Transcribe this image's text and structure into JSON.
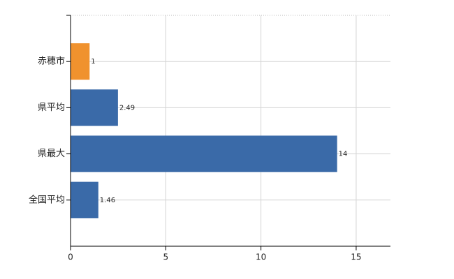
{
  "chart_data": {
    "type": "bar",
    "orientation": "horizontal",
    "categories": [
      "赤穂市",
      "県平均",
      "県最大",
      "全国平均"
    ],
    "values": [
      1,
      2.49,
      14,
      1.46
    ],
    "colors": [
      "#f0922e",
      "#3a6aa8",
      "#3a6aa8",
      "#3a6aa8"
    ],
    "xlim": [
      0,
      16.8
    ],
    "xticks": [
      0,
      5,
      10,
      15
    ],
    "grid": true
  }
}
